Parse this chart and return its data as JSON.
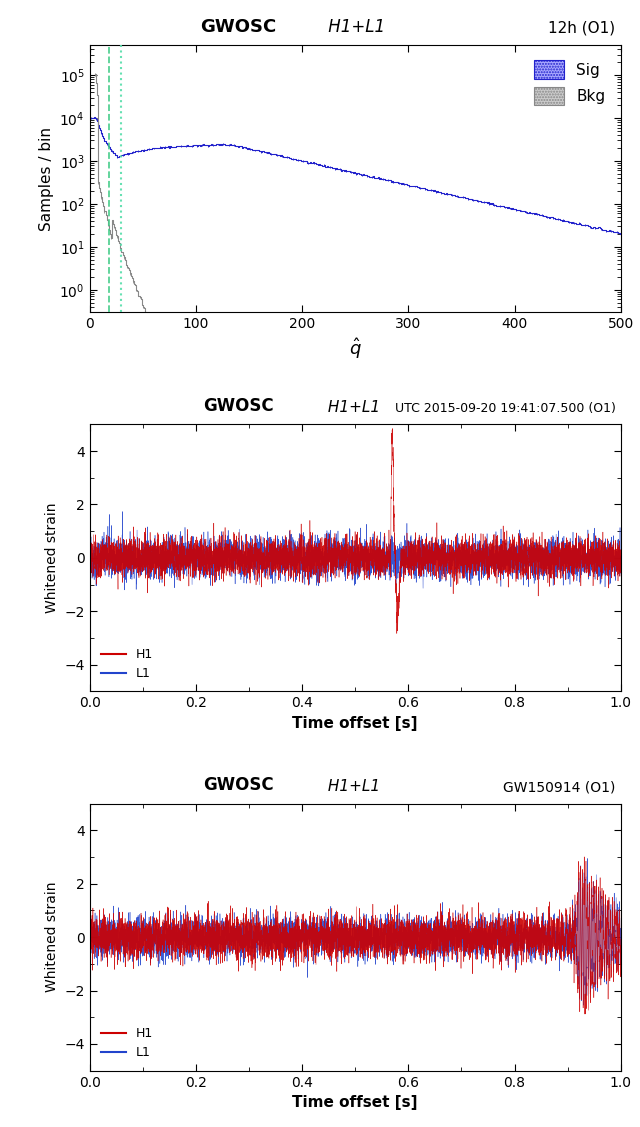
{
  "fig_width": 6.4,
  "fig_height": 11.27,
  "dpi": 100,
  "plot1": {
    "title_bold": "GWOSC",
    "title_italic": "H1+L1",
    "title_right": "12h (O1)",
    "ylabel": "Samples / bin",
    "xlabel": "$\\hat{q}$",
    "xlim": [
      0,
      500
    ],
    "ylim_log": [
      0.3,
      500000
    ],
    "xticks": [
      0,
      100,
      200,
      300,
      400,
      500
    ],
    "vline_dashed_x": 18,
    "vline_dashed_color": "#44cc88",
    "vline_dotted_x": 30,
    "vline_dotted_color": "#55ddaa",
    "sig_color": "#2222cc",
    "bkg_color": "#888888",
    "legend_sig": "Sig",
    "legend_bkg": "Bkg"
  },
  "plot2": {
    "title_bold": "GWOSC",
    "title_italic": "H1+L1",
    "title_right": "UTC 2015-09-20 19:41:07.500 (O1)",
    "ylabel": "Whitened strain",
    "xlabel": "Time offset [s]",
    "xlim": [
      0,
      1
    ],
    "ylim": [
      -5,
      5
    ],
    "xticks": [
      0,
      0.2,
      0.4,
      0.6,
      0.8,
      1.0
    ],
    "yticks": [
      -4,
      -2,
      0,
      2,
      4
    ],
    "h1_color": "#cc0000",
    "l1_color": "#2244cc"
  },
  "plot3": {
    "title_bold": "GWOSC",
    "title_italic": "H1+L1",
    "title_right": "GW150914 (O1)",
    "ylabel": "Whitened strain",
    "xlabel": "Time offset [s]",
    "xlim": [
      0,
      1
    ],
    "ylim": [
      -5,
      5
    ],
    "xticks": [
      0,
      0.2,
      0.4,
      0.6,
      0.8,
      1.0
    ],
    "yticks": [
      -4,
      -2,
      0,
      2,
      4
    ],
    "h1_color": "#cc0000",
    "l1_color": "#2244cc"
  }
}
